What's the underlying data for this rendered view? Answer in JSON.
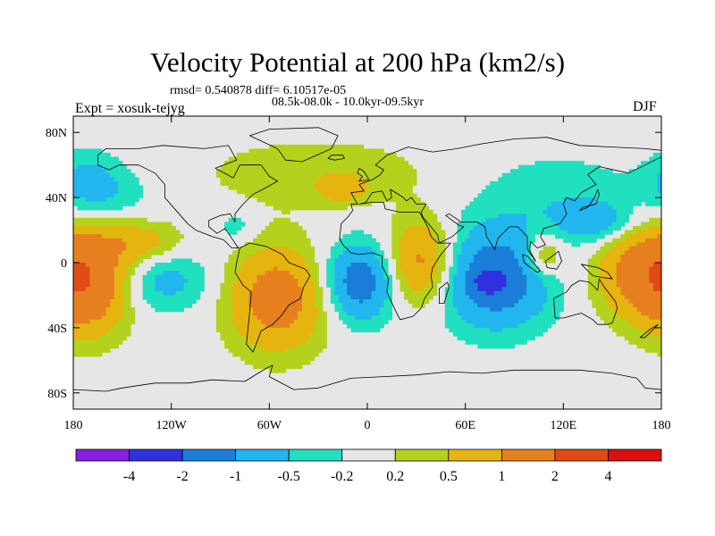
{
  "chart_data": {
    "type": "contour-map",
    "title": "Velocity Potential at 200 hPa (km2/s)",
    "stats_line": "rmsd= 0.540878  diff= 6.10517e-05",
    "period_line": "08.5k-08.0k - 10.0kyr-09.5kyr",
    "left_label": "Expt = xosuk-tejyg",
    "right_label": "DJF",
    "projection": "cylindrical equidistant",
    "lon_range": [
      -180,
      180
    ],
    "lat_range": [
      -90,
      90
    ],
    "x_ticks": [
      {
        "value": -180,
        "label": "180"
      },
      {
        "value": -120,
        "label": "120W"
      },
      {
        "value": -60,
        "label": "60W"
      },
      {
        "value": 0,
        "label": "0"
      },
      {
        "value": 60,
        "label": "60E"
      },
      {
        "value": 120,
        "label": "120E"
      },
      {
        "value": 180,
        "label": "180"
      }
    ],
    "y_ticks": [
      {
        "value": 80,
        "label": "80N"
      },
      {
        "value": 40,
        "label": "40N"
      },
      {
        "value": 0,
        "label": "0"
      },
      {
        "value": -40,
        "label": "40S"
      },
      {
        "value": -80,
        "label": "80S"
      }
    ],
    "colorbar": {
      "levels": [
        -4,
        -2,
        -1,
        -0.5,
        -0.2,
        0.2,
        0.5,
        1,
        2,
        4
      ],
      "labels": [
        "-4",
        "-2",
        "-1",
        "-0.5",
        "-0.2",
        "0.2",
        "0.5",
        "1",
        "2",
        "4"
      ],
      "colors": [
        "#8a1ee0",
        "#3030e0",
        "#1a7ed8",
        "#22b6ee",
        "#20e0c0",
        "#e6e6e6",
        "#b4d21c",
        "#e6b40e",
        "#e6801e",
        "#e04a14",
        "#dc0e0e"
      ]
    },
    "features": [
      {
        "name": "central-pacific-positive",
        "lon": -170,
        "lat": -15,
        "rlon": 25,
        "rlat": 30,
        "value": 1.3
      },
      {
        "name": "east-pacific-positive",
        "lon": -140,
        "lat": 12,
        "rlon": 28,
        "rlat": 14,
        "value": 0.8
      },
      {
        "name": "northeast-pacific-negative",
        "lon": -160,
        "lat": 42,
        "rlon": 30,
        "rlat": 18,
        "value": -0.4
      },
      {
        "name": "north-pacific-cyan",
        "lon": -170,
        "lat": 52,
        "rlon": 18,
        "rlat": 18,
        "value": -0.45
      },
      {
        "name": "southeast-pacific-negative",
        "lon": -125,
        "lat": -10,
        "rlon": 30,
        "rlat": 20,
        "value": -0.7
      },
      {
        "name": "south-america-positive",
        "lon": -55,
        "lat": -22,
        "rlon": 30,
        "rlat": 32,
        "value": 1.4
      },
      {
        "name": "northern-hemisphere-positive",
        "lon": -30,
        "lat": 55,
        "rlon": 75,
        "rlat": 22,
        "value": 0.4
      },
      {
        "name": "north-atlantic-orange",
        "lon": -15,
        "lat": 45,
        "rlon": 15,
        "rlat": 8,
        "value": 0.6
      },
      {
        "name": "caribbean-cyan",
        "lon": -80,
        "lat": 22,
        "rlon": 12,
        "rlat": 10,
        "value": -0.4
      },
      {
        "name": "south-atlantic-negative",
        "lon": -5,
        "lat": -12,
        "rlon": 22,
        "rlat": 24,
        "value": -1.4
      },
      {
        "name": "east-africa-positive",
        "lon": 33,
        "lat": 0,
        "rlon": 20,
        "rlat": 26,
        "value": 1.3
      },
      {
        "name": "indian-ocean-negative",
        "lon": 78,
        "lat": -10,
        "rlon": 34,
        "rlat": 30,
        "value": -1.5
      },
      {
        "name": "indian-ocean-core",
        "lon": 75,
        "lat": -12,
        "rlon": 8,
        "rlat": 6,
        "value": -2.5
      },
      {
        "name": "maritime-positive",
        "lon": 108,
        "lat": 5,
        "rlon": 12,
        "rlat": 14,
        "value": 0.9
      },
      {
        "name": "asia-negative",
        "lon": 115,
        "lat": 40,
        "rlon": 55,
        "rlat": 28,
        "value": -0.4
      },
      {
        "name": "west-pacific-negative",
        "lon": 140,
        "lat": 25,
        "rlon": 22,
        "rlat": 12,
        "value": -0.8
      },
      {
        "name": "west-pacific-positive",
        "lon": 170,
        "lat": -5,
        "rlon": 30,
        "rlat": 28,
        "value": 1.3
      }
    ]
  }
}
